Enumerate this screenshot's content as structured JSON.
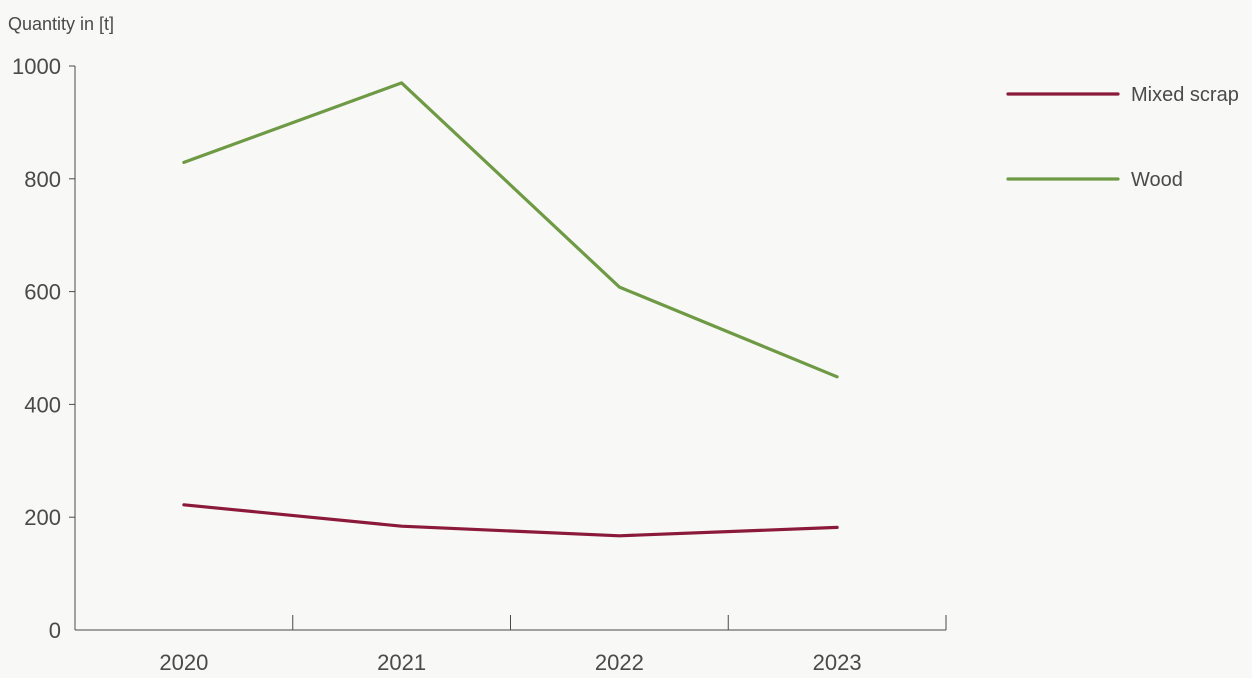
{
  "chart_data": {
    "type": "line",
    "ylabel": "Quantity in [t]",
    "xlabel": "",
    "categories": [
      "2020",
      "2021",
      "2022",
      "2023"
    ],
    "ylim": [
      0,
      1000
    ],
    "yticks": [
      0,
      200,
      400,
      600,
      800,
      1000
    ],
    "grid": false,
    "legend_position": "top-right",
    "series": [
      {
        "name": "Mixed scrap",
        "color": "#8b1a3a",
        "values": [
          222,
          184,
          167,
          182
        ]
      },
      {
        "name": "Wood",
        "color": "#6f9a45",
        "values": [
          829,
          970,
          608,
          449
        ]
      }
    ]
  }
}
